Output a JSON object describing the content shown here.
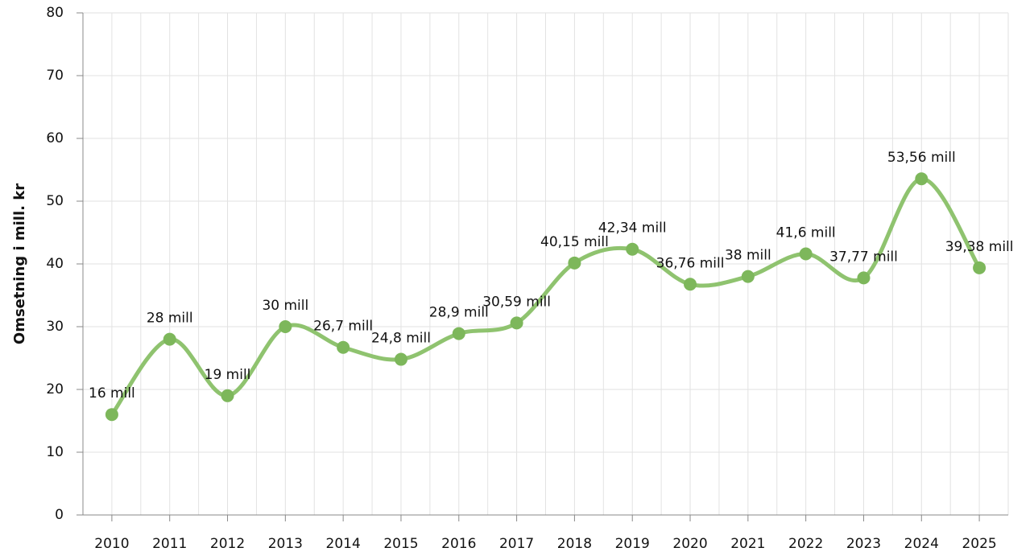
{
  "chart_data": {
    "type": "line",
    "y_label": "Omsetning i mill. kr",
    "categories": [
      "2010",
      "2011",
      "2012",
      "2013",
      "2014",
      "2015",
      "2016",
      "2017",
      "2018",
      "2019",
      "2020",
      "2021",
      "2022",
      "2023",
      "2024",
      "2025"
    ],
    "series": [
      {
        "color": "#8fc36f",
        "values": [
          16,
          28,
          19,
          30,
          26.7,
          24.8,
          28.9,
          30.59,
          40.15,
          42.34,
          36.76,
          38,
          41.6,
          37.77,
          53.56,
          39.38
        ],
        "value_labels": [
          "16 mill",
          "28 mill",
          "19 mill",
          "30 mill",
          "26,7 mill",
          "24,8 mill",
          "28,9 mill",
          "30,59 mill",
          "40,15 mill",
          "42,34 mill",
          "36,76 mill",
          "38 mill",
          "41,6 mill",
          "37,77 mill",
          "53,56 mill",
          "39,38 mill"
        ]
      }
    ],
    "ylim": [
      0,
      80
    ],
    "yticks": [
      0,
      10,
      20,
      30,
      40,
      50,
      60,
      70,
      80
    ],
    "grid": true
  }
}
